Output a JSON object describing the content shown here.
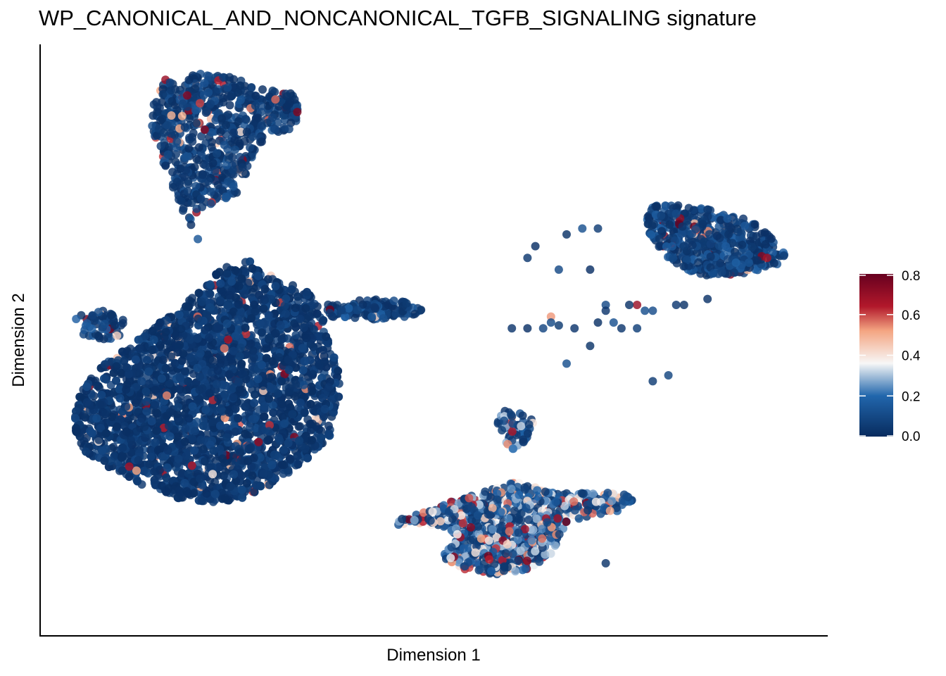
{
  "chart_data": {
    "type": "scatter",
    "title": "WP_CANONICAL_AND_NONCANONICAL_TGFB_SIGNALING signature",
    "xlabel": "Dimension 1",
    "ylabel": "Dimension 2",
    "xlim": [
      0,
      100
    ],
    "ylim": [
      0,
      100
    ],
    "axis_ticks_shown": false,
    "grid": false,
    "legend": {
      "position": "right",
      "type": "colorbar",
      "ticks": [
        "0.0",
        "0.2",
        "0.4",
        "0.6",
        "0.8"
      ],
      "range": [
        0,
        0.8
      ]
    },
    "colors": {
      "low": "#082b5e",
      "mid_low": "#2166ac",
      "mid": "#f7f7f7",
      "mid_high": "#d6604d",
      "high": "#67001f"
    },
    "clusters": [
      {
        "id": "top-left",
        "shape": "blob",
        "points": [
          [
            16,
            95
          ],
          [
            17,
            93
          ],
          [
            20,
            96
          ],
          [
            24,
            95
          ],
          [
            28,
            93
          ],
          [
            32,
            92
          ],
          [
            33,
            89
          ],
          [
            32,
            86
          ],
          [
            29,
            84
          ],
          [
            27,
            82
          ],
          [
            26,
            78
          ],
          [
            25,
            75
          ],
          [
            22,
            73
          ],
          [
            20,
            72
          ],
          [
            19,
            68
          ],
          [
            20,
            67
          ],
          [
            18,
            72
          ],
          [
            16,
            78
          ],
          [
            15,
            82
          ],
          [
            14,
            86
          ],
          [
            14,
            90
          ]
        ],
        "n": 700,
        "mean_value": 0.08,
        "hot_fraction": 0.06
      },
      {
        "id": "big-left",
        "shape": "blob",
        "points": [
          [
            25,
            64
          ],
          [
            28,
            63
          ],
          [
            30,
            60
          ],
          [
            33,
            59
          ],
          [
            35,
            57
          ],
          [
            36,
            53
          ],
          [
            37,
            49
          ],
          [
            38,
            44
          ],
          [
            38,
            39
          ],
          [
            37,
            34
          ],
          [
            34,
            30
          ],
          [
            30,
            26
          ],
          [
            26,
            23
          ],
          [
            22,
            22
          ],
          [
            17,
            23
          ],
          [
            13,
            25
          ],
          [
            9,
            28
          ],
          [
            5,
            31
          ],
          [
            4,
            36
          ],
          [
            5,
            42
          ],
          [
            8,
            46
          ],
          [
            11,
            49
          ],
          [
            14,
            52
          ],
          [
            17,
            55
          ],
          [
            20,
            58
          ],
          [
            22,
            61
          ]
        ],
        "n": 3600,
        "mean_value": 0.06,
        "hot_fraction": 0.03
      },
      {
        "id": "left-small",
        "shape": "blob",
        "points": [
          [
            5,
            55
          ],
          [
            8,
            55
          ],
          [
            11,
            53
          ],
          [
            11,
            51
          ],
          [
            8,
            50
          ],
          [
            5,
            51
          ],
          [
            4,
            53
          ]
        ],
        "n": 60,
        "mean_value": 0.1,
        "hot_fraction": 0.05
      },
      {
        "id": "mid-streak",
        "shape": "blob",
        "points": [
          [
            36,
            56
          ],
          [
            42,
            57
          ],
          [
            47,
            56.5
          ],
          [
            49,
            55.5
          ],
          [
            47,
            54
          ],
          [
            42,
            53.5
          ],
          [
            37,
            54
          ]
        ],
        "n": 140,
        "mean_value": 0.1,
        "hot_fraction": 0.02
      },
      {
        "id": "right-blob",
        "shape": "blob",
        "points": [
          [
            78,
            73
          ],
          [
            82,
            73
          ],
          [
            87,
            72
          ],
          [
            91,
            70
          ],
          [
            94,
            67
          ],
          [
            95,
            64
          ],
          [
            93,
            62
          ],
          [
            89,
            61
          ],
          [
            85,
            61
          ],
          [
            82,
            62
          ],
          [
            80,
            64
          ],
          [
            78,
            67
          ],
          [
            77,
            70
          ]
        ],
        "n": 500,
        "mean_value": 0.1,
        "hot_fraction": 0.06
      },
      {
        "id": "center-small",
        "shape": "blob",
        "points": [
          [
            59,
            38
          ],
          [
            61,
            38
          ],
          [
            63,
            36
          ],
          [
            63,
            34
          ],
          [
            61,
            32
          ],
          [
            60,
            31
          ],
          [
            59,
            33
          ],
          [
            58,
            36
          ]
        ],
        "n": 60,
        "mean_value": 0.18,
        "hot_fraction": 0.15
      },
      {
        "id": "bottom-center",
        "shape": "blob",
        "points": [
          [
            53,
            23
          ],
          [
            56,
            24
          ],
          [
            60,
            26
          ],
          [
            63,
            25
          ],
          [
            66,
            24
          ],
          [
            70,
            24
          ],
          [
            74,
            24
          ],
          [
            76,
            23
          ],
          [
            74,
            21
          ],
          [
            70,
            20
          ],
          [
            67,
            19
          ],
          [
            66,
            16
          ],
          [
            65,
            13
          ],
          [
            62,
            11
          ],
          [
            58,
            10
          ],
          [
            54,
            11
          ],
          [
            51,
            13
          ],
          [
            53,
            16
          ],
          [
            52,
            18
          ],
          [
            47,
            19
          ],
          [
            45,
            18
          ],
          [
            46,
            20
          ],
          [
            50,
            21
          ]
        ],
        "n": 900,
        "mean_value": 0.22,
        "hot_fraction": 0.18
      },
      {
        "id": "scatter-mid",
        "shape": "scatter",
        "points": [
          [
            63,
            66
          ],
          [
            67,
            68
          ],
          [
            70,
            62
          ],
          [
            68,
            52
          ],
          [
            72,
            56
          ],
          [
            77,
            55
          ],
          [
            76,
            52
          ],
          [
            70,
            49
          ],
          [
            67,
            46
          ],
          [
            69,
            69
          ],
          [
            66,
            62
          ],
          [
            62,
            64
          ],
          [
            80,
            44
          ],
          [
            78,
            43
          ],
          [
            72,
            55
          ],
          [
            65,
            54
          ],
          [
            76,
            56
          ],
          [
            78,
            55
          ],
          [
            81,
            56
          ],
          [
            74,
            52
          ],
          [
            85,
            57
          ],
          [
            71,
            69
          ],
          [
            75,
            56
          ],
          [
            82,
            56
          ],
          [
            54,
            11
          ],
          [
            56,
            11
          ],
          [
            54,
            11.5
          ],
          [
            72,
            12
          ],
          [
            66,
            52.5
          ],
          [
            64,
            52
          ],
          [
            62,
            52
          ],
          [
            65,
            53
          ],
          [
            71,
            53
          ],
          [
            73,
            53
          ],
          [
            60,
            52
          ]
        ],
        "n": 0,
        "mean_value": 0.08,
        "hot_fraction": 0.05
      }
    ]
  }
}
